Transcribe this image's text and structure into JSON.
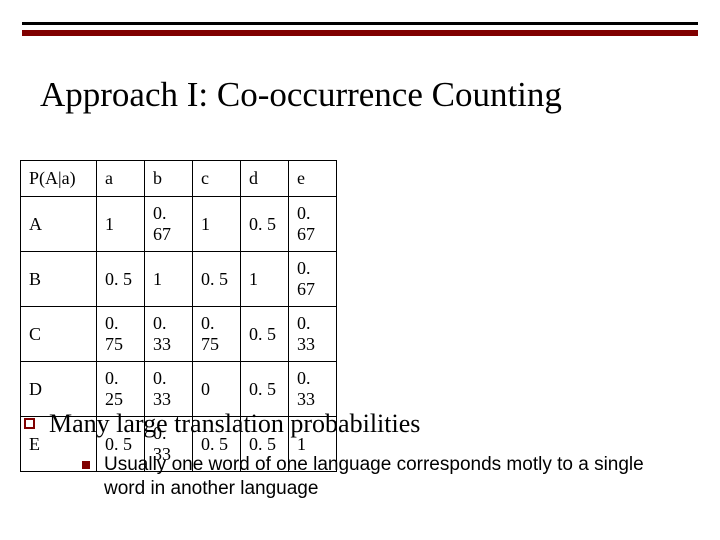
{
  "title": "Approach I: Co-occurrence Counting",
  "table": {
    "columns": [
      "P(A|a)",
      "a",
      "b",
      "c",
      "d",
      "e"
    ],
    "rows": [
      [
        "A",
        "1",
        "0. 67",
        "1",
        "0. 5",
        "0. 67"
      ],
      [
        "B",
        "0. 5",
        "1",
        "0. 5",
        "1",
        "0. 67"
      ],
      [
        "C",
        "0. 75",
        "0. 33",
        "0. 75",
        "0. 5",
        "0. 33"
      ],
      [
        "D",
        "0. 25",
        "0. 33",
        "0",
        "0. 5",
        "0. 33"
      ],
      [
        "E",
        "0. 5",
        "0. 33",
        "0. 5",
        "0. 5",
        "1"
      ]
    ],
    "border_color": "#000000",
    "font_size": 18
  },
  "bullet": {
    "text": "Many large translation probabilities",
    "sub": "Usually one word of one language corresponds motly to a single word in another language"
  },
  "colors": {
    "accent": "#800000",
    "rule_thin": "#000000",
    "background": "#ffffff"
  }
}
